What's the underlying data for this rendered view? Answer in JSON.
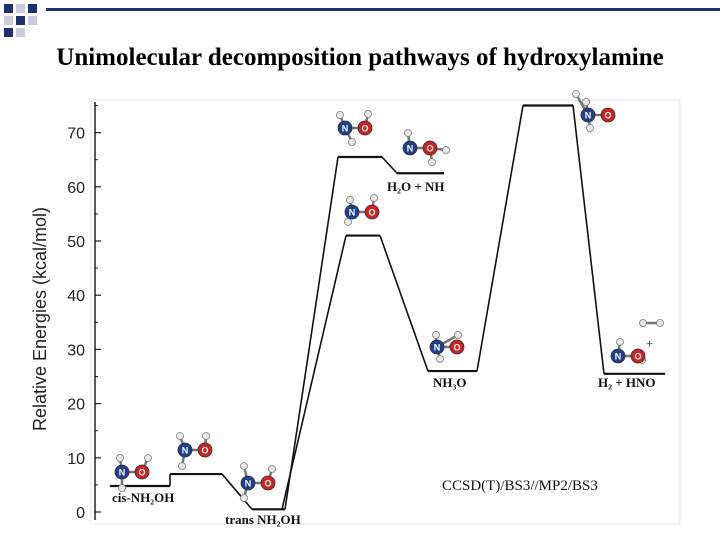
{
  "slide": {
    "title": "Unimolecular decomposition pathways of hydroxylamine"
  },
  "chart_data": {
    "type": "energy-profile",
    "ylabel": "Relative Energies (kcal/mol)",
    "ylim": [
      0,
      75
    ],
    "yticks": [
      0,
      10,
      20,
      30,
      40,
      50,
      60,
      70
    ],
    "method_label": "CCSD(T)/BS3//MP2/BS3",
    "levels": [
      {
        "id": "cis",
        "label": "cis-NH₂OH",
        "energy": 4.8
      },
      {
        "id": "ts1",
        "label": "",
        "energy": 7.0
      },
      {
        "id": "trans",
        "label": "trans NH₂OH",
        "energy": 0.5
      },
      {
        "id": "ts-h2o",
        "label": "",
        "energy": 65.5
      },
      {
        "id": "h2o-nh",
        "label": "H₂O + NH",
        "energy": 62.5
      },
      {
        "id": "ts-nh3o",
        "label": "",
        "energy": 51.0
      },
      {
        "id": "nh3o",
        "label": "NH₃O",
        "energy": 26.0
      },
      {
        "id": "ts-h2",
        "label": "",
        "energy": 75.0
      },
      {
        "id": "h2-hno",
        "label": "H₂ + HNO",
        "energy": 25.5
      }
    ]
  },
  "colors": {
    "nitrogen": "#1f3f8f",
    "oxygen": "#d02020",
    "hydrogen": "#e8e8e8",
    "accent": "#1f2f6e"
  }
}
